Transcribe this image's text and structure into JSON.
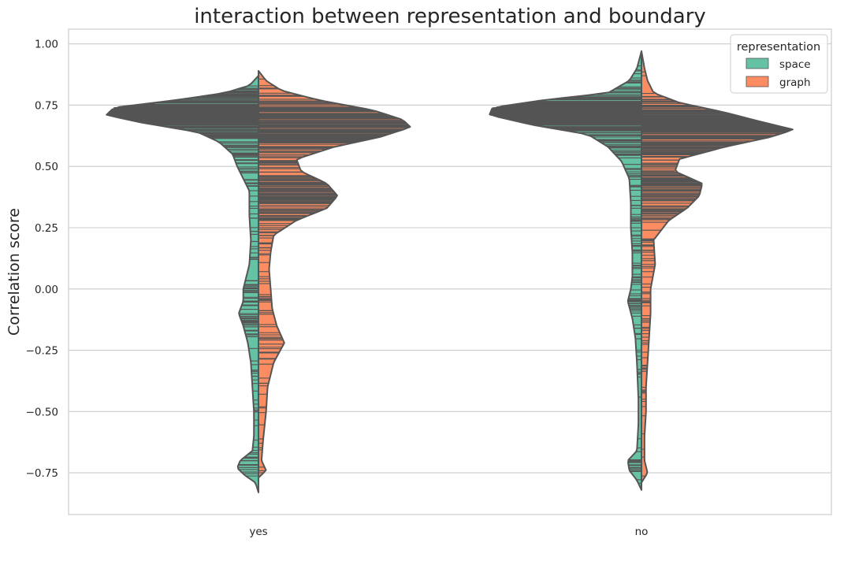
{
  "chart_data": {
    "type": "violin",
    "title": "interaction between representation and boundary",
    "xlabel": "",
    "ylabel": "Correlation score",
    "categories": [
      "yes",
      "no"
    ],
    "ylim": [
      -0.92,
      1.06
    ],
    "yticks": [
      1.0,
      0.75,
      0.5,
      0.25,
      0.0,
      -0.25,
      -0.5,
      -0.75
    ],
    "ytick_labels": [
      "1.00",
      "0.75",
      "0.50",
      "0.25",
      "0.00",
      "−0.25",
      "−0.50",
      "−0.75"
    ],
    "grid": true,
    "split": true,
    "inner": "stick",
    "legend": {
      "title": "representation",
      "placement": "top-right"
    },
    "series": [
      {
        "name": "space",
        "color": "#66c2a5",
        "densities": {
          "yes": {
            "range": [
              -0.83,
              0.87
            ],
            "profile": [
              [
                -0.83,
                0.0
              ],
              [
                -0.79,
                0.02
              ],
              [
                -0.76,
                0.09
              ],
              [
                -0.73,
                0.14
              ],
              [
                -0.7,
                0.12
              ],
              [
                -0.66,
                0.04
              ],
              [
                -0.6,
                0.03
              ],
              [
                -0.5,
                0.03
              ],
              [
                -0.4,
                0.04
              ],
              [
                -0.3,
                0.05
              ],
              [
                -0.22,
                0.07
              ],
              [
                -0.15,
                0.1
              ],
              [
                -0.1,
                0.13
              ],
              [
                -0.05,
                0.1
              ],
              [
                0.0,
                0.1
              ],
              [
                0.05,
                0.08
              ],
              [
                0.1,
                0.06
              ],
              [
                0.2,
                0.05
              ],
              [
                0.3,
                0.06
              ],
              [
                0.4,
                0.06
              ],
              [
                0.45,
                0.1
              ],
              [
                0.5,
                0.14
              ],
              [
                0.55,
                0.17
              ],
              [
                0.6,
                0.26
              ],
              [
                0.64,
                0.4
              ],
              [
                0.68,
                0.78
              ],
              [
                0.71,
                1.0
              ],
              [
                0.74,
                0.95
              ],
              [
                0.77,
                0.55
              ],
              [
                0.8,
                0.22
              ],
              [
                0.83,
                0.06
              ],
              [
                0.87,
                0.0
              ]
            ]
          },
          "no": {
            "range": [
              -0.82,
              0.97
            ],
            "profile": [
              [
                -0.82,
                0.0
              ],
              [
                -0.78,
                0.03
              ],
              [
                -0.74,
                0.08
              ],
              [
                -0.7,
                0.09
              ],
              [
                -0.66,
                0.03
              ],
              [
                -0.55,
                0.02
              ],
              [
                -0.45,
                0.02
              ],
              [
                -0.3,
                0.03
              ],
              [
                -0.2,
                0.04
              ],
              [
                -0.12,
                0.06
              ],
              [
                -0.05,
                0.09
              ],
              [
                0.0,
                0.07
              ],
              [
                0.05,
                0.06
              ],
              [
                0.15,
                0.06
              ],
              [
                0.25,
                0.07
              ],
              [
                0.35,
                0.07
              ],
              [
                0.45,
                0.08
              ],
              [
                0.52,
                0.13
              ],
              [
                0.58,
                0.22
              ],
              [
                0.63,
                0.35
              ],
              [
                0.67,
                0.72
              ],
              [
                0.71,
                1.0
              ],
              [
                0.74,
                0.98
              ],
              [
                0.77,
                0.65
              ],
              [
                0.8,
                0.22
              ],
              [
                0.85,
                0.08
              ],
              [
                0.9,
                0.03
              ],
              [
                0.97,
                0.0
              ]
            ]
          }
        }
      },
      {
        "name": "graph",
        "color": "#fc8d62",
        "densities": {
          "yes": {
            "range": [
              -0.77,
              0.89
            ],
            "profile": [
              [
                -0.77,
                0.0
              ],
              [
                -0.74,
                0.05
              ],
              [
                -0.7,
                0.02
              ],
              [
                -0.62,
                0.03
              ],
              [
                -0.5,
                0.05
              ],
              [
                -0.4,
                0.06
              ],
              [
                -0.3,
                0.1
              ],
              [
                -0.22,
                0.17
              ],
              [
                -0.15,
                0.12
              ],
              [
                -0.08,
                0.09
              ],
              [
                0.0,
                0.08
              ],
              [
                0.08,
                0.07
              ],
              [
                0.15,
                0.08
              ],
              [
                0.22,
                0.1
              ],
              [
                0.28,
                0.25
              ],
              [
                0.33,
                0.45
              ],
              [
                0.38,
                0.52
              ],
              [
                0.43,
                0.45
              ],
              [
                0.48,
                0.28
              ],
              [
                0.53,
                0.25
              ],
              [
                0.58,
                0.5
              ],
              [
                0.62,
                0.8
              ],
              [
                0.66,
                1.0
              ],
              [
                0.69,
                0.95
              ],
              [
                0.73,
                0.75
              ],
              [
                0.77,
                0.4
              ],
              [
                0.81,
                0.15
              ],
              [
                0.85,
                0.05
              ],
              [
                0.89,
                0.0
              ]
            ]
          },
          "no": {
            "range": [
              -0.79,
              0.97
            ],
            "profile": [
              [
                -0.79,
                0.0
              ],
              [
                -0.75,
                0.04
              ],
              [
                -0.7,
                0.02
              ],
              [
                -0.6,
                0.02
              ],
              [
                -0.5,
                0.03
              ],
              [
                -0.4,
                0.03
              ],
              [
                -0.3,
                0.04
              ],
              [
                -0.2,
                0.05
              ],
              [
                -0.1,
                0.06
              ],
              [
                0.0,
                0.06
              ],
              [
                0.1,
                0.09
              ],
              [
                0.2,
                0.08
              ],
              [
                0.28,
                0.18
              ],
              [
                0.33,
                0.3
              ],
              [
                0.38,
                0.38
              ],
              [
                0.43,
                0.4
              ],
              [
                0.48,
                0.22
              ],
              [
                0.53,
                0.25
              ],
              [
                0.58,
                0.55
              ],
              [
                0.62,
                0.85
              ],
              [
                0.65,
                1.0
              ],
              [
                0.68,
                0.8
              ],
              [
                0.72,
                0.55
              ],
              [
                0.76,
                0.25
              ],
              [
                0.8,
                0.08
              ],
              [
                0.85,
                0.04
              ],
              [
                0.9,
                0.02
              ],
              [
                0.97,
                0.0
              ]
            ]
          }
        }
      }
    ]
  }
}
